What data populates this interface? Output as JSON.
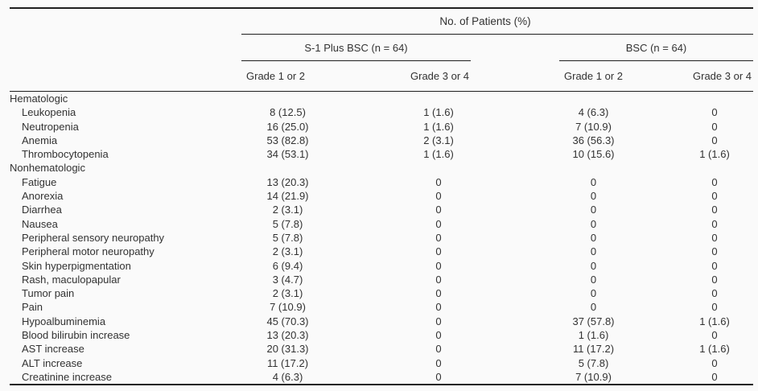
{
  "page": {
    "background_color": "#fafafa",
    "text_color": "#323232",
    "rule_color": "#1f1f1f"
  },
  "table": {
    "title": "No. of Patients (%)",
    "groups": [
      {
        "label": "S-1 Plus BSC (n = 64)"
      },
      {
        "label": "BSC (n = 64)"
      }
    ],
    "columns": [
      "Grade 1 or 2",
      "Grade 3 or 4",
      "Grade 1 or 2",
      "Grade 3 or 4"
    ],
    "rows": [
      {
        "label": "Hematologic",
        "indent": false,
        "values": [
          "",
          "",
          "",
          ""
        ]
      },
      {
        "label": "Leukopenia",
        "indent": true,
        "values": [
          "8 (12.5)",
          "1 (1.6)",
          "4 (6.3)",
          "0"
        ]
      },
      {
        "label": "Neutropenia",
        "indent": true,
        "values": [
          "16 (25.0)",
          "1 (1.6)",
          "7 (10.9)",
          "0"
        ]
      },
      {
        "label": "Anemia",
        "indent": true,
        "values": [
          "53 (82.8)",
          "2 (3.1)",
          "36 (56.3)",
          "0"
        ]
      },
      {
        "label": "Thrombocytopenia",
        "indent": true,
        "values": [
          "34 (53.1)",
          "1 (1.6)",
          "10 (15.6)",
          "1 (1.6)"
        ]
      },
      {
        "label": "Nonhematologic",
        "indent": false,
        "values": [
          "",
          "",
          "",
          ""
        ]
      },
      {
        "label": "Fatigue",
        "indent": true,
        "values": [
          "13 (20.3)",
          "0",
          "0",
          "0"
        ]
      },
      {
        "label": "Anorexia",
        "indent": true,
        "values": [
          "14 (21.9)",
          "0",
          "0",
          "0"
        ]
      },
      {
        "label": "Diarrhea",
        "indent": true,
        "values": [
          "2 (3.1)",
          "0",
          "0",
          "0"
        ]
      },
      {
        "label": "Nausea",
        "indent": true,
        "values": [
          "5 (7.8)",
          "0",
          "0",
          "0"
        ]
      },
      {
        "label": "Peripheral sensory neuropathy",
        "indent": true,
        "values": [
          "5 (7.8)",
          "0",
          "0",
          "0"
        ]
      },
      {
        "label": "Peripheral motor neuropathy",
        "indent": true,
        "values": [
          "2 (3.1)",
          "0",
          "0",
          "0"
        ]
      },
      {
        "label": "Skin hyperpigmentation",
        "indent": true,
        "values": [
          "6 (9.4)",
          "0",
          "0",
          "0"
        ]
      },
      {
        "label": "Rash, maculopapular",
        "indent": true,
        "values": [
          "3 (4.7)",
          "0",
          "0",
          "0"
        ]
      },
      {
        "label": "Tumor pain",
        "indent": true,
        "values": [
          "2 (3.1)",
          "0",
          "0",
          "0"
        ]
      },
      {
        "label": "Pain",
        "indent": true,
        "values": [
          "7 (10.9)",
          "0",
          "0",
          "0"
        ]
      },
      {
        "label": "Hypoalbuminemia",
        "indent": true,
        "values": [
          "45 (70.3)",
          "0",
          "37 (57.8)",
          "1 (1.6)"
        ]
      },
      {
        "label": "Blood bilirubin increase",
        "indent": true,
        "values": [
          "13 (20.3)",
          "0",
          "1 (1.6)",
          "0"
        ]
      },
      {
        "label": "AST increase",
        "indent": true,
        "values": [
          "20 (31.3)",
          "0",
          "11 (17.2)",
          "1 (1.6)"
        ]
      },
      {
        "label": "ALT increase",
        "indent": true,
        "values": [
          "11 (17.2)",
          "0",
          "5 (7.8)",
          "0"
        ]
      },
      {
        "label": "Creatinine increase",
        "indent": true,
        "values": [
          "4 (6.3)",
          "0",
          "7 (10.9)",
          "0"
        ]
      }
    ]
  }
}
